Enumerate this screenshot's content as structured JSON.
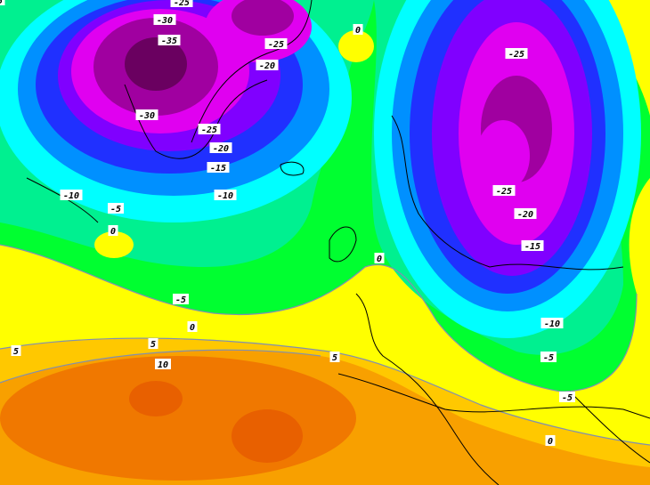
{
  "map": {
    "field": "temperature",
    "units": "°C",
    "contour_interval": 5,
    "colors": {
      "t_35": "#6a0060",
      "t_30": "#a000a0",
      "t_25": "#e000f0",
      "t_20": "#8000ff",
      "t_15": "#2030ff",
      "t_10": "#0090ff",
      "t_5": "#00ffff",
      "t_0": "#00f090",
      "t0": "#00ff30",
      "t5": "#ffff00",
      "t10": "#ffc800",
      "t15": "#f8a000",
      "t20": "#f07800",
      "t25": "#e86000"
    },
    "contour_labels": [
      "-25",
      "-30",
      "-35",
      "-25",
      "-20",
      "-30",
      "-25",
      "-20",
      "-15",
      "-10",
      "-10",
      "-5",
      "0",
      "-5",
      "0",
      "-25",
      "-25",
      "-20",
      "-15",
      "0",
      "-5",
      "0",
      "5",
      "10",
      "5",
      "5",
      "-10",
      "-5",
      "0",
      "5"
    ]
  }
}
